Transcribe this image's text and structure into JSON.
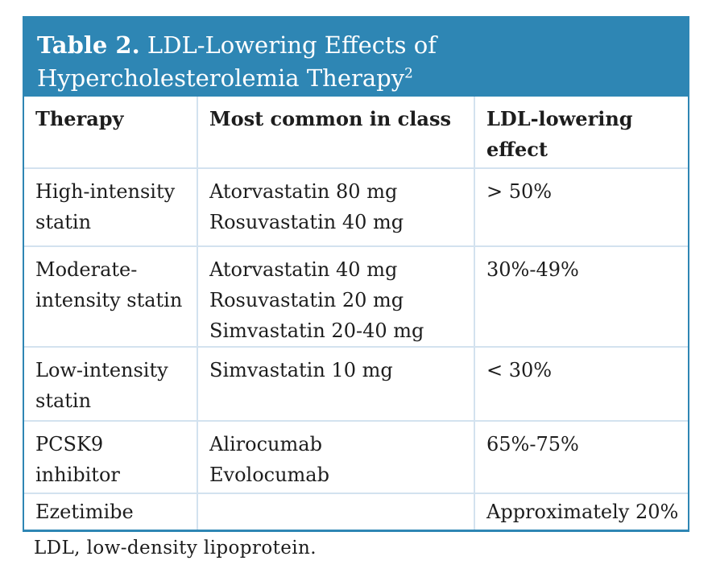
{
  "table": {
    "title_bold": "Table 2.",
    "title_rest": " LDL-Lowering Effects of Hypercholesterolemia Therapy",
    "title_superscript": "2",
    "columns": [
      "Therapy",
      "Most common in class",
      "LDL-lowering effect"
    ],
    "rows": [
      {
        "therapy": "High-intensity statin",
        "drugs": [
          "Atorvastatin 80 mg",
          "Rosuvastatin 40 mg"
        ],
        "effect": "> 50%"
      },
      {
        "therapy": "Moderate-intensity statin",
        "drugs": [
          "Atorvastatin 40 mg",
          "Rosuvastatin 20 mg",
          "Simvastatin 20-40 mg"
        ],
        "effect": "30%-49%"
      },
      {
        "therapy": "Low-intensity statin",
        "drugs": [
          "Simvastatin 10 mg"
        ],
        "effect": "< 30%"
      },
      {
        "therapy": "PCSK9 inhibitor",
        "drugs": [
          "Alirocumab",
          "Evolocumab"
        ],
        "effect": "65%-75%"
      },
      {
        "therapy": "Ezetimibe",
        "drugs": [],
        "effect": "Approximately 20%"
      }
    ],
    "footnote": "LDL, low-density lipoprotein.",
    "colors": {
      "header_bg": "#2e86b4",
      "border": "#2e86b4",
      "divider": "#d3e2ef",
      "text": "#1d1d1d",
      "title_text": "#ffffff"
    }
  }
}
